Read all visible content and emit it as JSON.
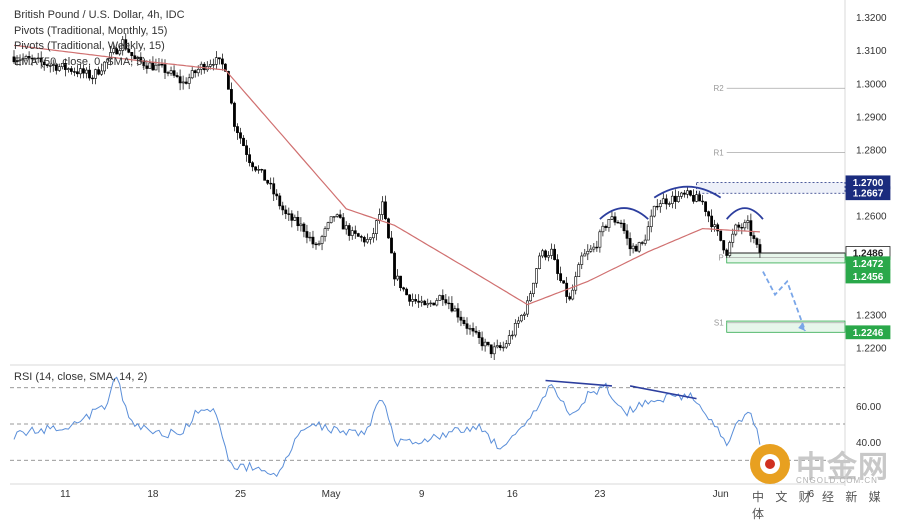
{
  "legend": {
    "symbol": "British Pound / U.S. Dollar, 4h, IDC",
    "pivots_monthly": "Pivots (Traditional, Monthly, 15)",
    "pivots_weekly": "Pivots (Traditional, Weekly, 15)",
    "ema": "EMA (50, close, 0, SMA, 5)"
  },
  "rsi_legend": "RSI (14, close, SMA, 14, 2)",
  "watermark": {
    "title": "中金网",
    "url": "CNGOLD.COM.CN",
    "subtitle": "中 文 财 经 新 媒 体"
  },
  "colors": {
    "candle": "#000000",
    "ema": "#d07070",
    "rsi": "#5b8fd9",
    "annotation": "#2c3e9e",
    "projection": "#7aa6e8",
    "label_dark": "#1b2c7e",
    "label_green": "#2aa84a",
    "label_black": "#222222"
  },
  "chart_data": {
    "type": "candlestick",
    "timeframe": "4h",
    "x_tick_labels": [
      "11",
      "18",
      "25",
      "May",
      "9",
      "16",
      "23",
      "Jun",
      "6"
    ],
    "price_axis": {
      "ylim": [
        1.215,
        1.324
      ],
      "tick_labels": [
        "1.3200",
        "1.3100",
        "1.3000",
        "1.2900",
        "1.2800",
        "1.2600",
        "1.2300",
        "1.2200"
      ]
    },
    "rsi_axis": {
      "ylim": [
        18,
        82
      ],
      "tick_labels": [
        "60.00",
        "40.00"
      ],
      "bands": [
        70,
        50,
        30
      ]
    },
    "close_anchors": [
      {
        "i": 0,
        "v": 1.308
      },
      {
        "i": 10,
        "v": 1.306
      },
      {
        "i": 20,
        "v": 1.304
      },
      {
        "i": 26,
        "v": 1.302
      },
      {
        "i": 30,
        "v": 1.306
      },
      {
        "i": 36,
        "v": 1.3125
      },
      {
        "i": 40,
        "v": 1.307
      },
      {
        "i": 50,
        "v": 1.304
      },
      {
        "i": 56,
        "v": 1.3
      },
      {
        "i": 62,
        "v": 1.305
      },
      {
        "i": 66,
        "v": 1.307
      },
      {
        "i": 70,
        "v": 1.305
      },
      {
        "i": 73,
        "v": 1.288
      },
      {
        "i": 78,
        "v": 1.277
      },
      {
        "i": 84,
        "v": 1.27
      },
      {
        "i": 90,
        "v": 1.26
      },
      {
        "i": 96,
        "v": 1.256
      },
      {
        "i": 100,
        "v": 1.25
      },
      {
        "i": 106,
        "v": 1.26
      },
      {
        "i": 112,
        "v": 1.254
      },
      {
        "i": 118,
        "v": 1.252
      },
      {
        "i": 122,
        "v": 1.263
      },
      {
        "i": 126,
        "v": 1.242
      },
      {
        "i": 130,
        "v": 1.236
      },
      {
        "i": 136,
        "v": 1.232
      },
      {
        "i": 142,
        "v": 1.236
      },
      {
        "i": 148,
        "v": 1.229
      },
      {
        "i": 152,
        "v": 1.224
      },
      {
        "i": 158,
        "v": 1.219
      },
      {
        "i": 162,
        "v": 1.22
      },
      {
        "i": 166,
        "v": 1.226
      },
      {
        "i": 170,
        "v": 1.233
      },
      {
        "i": 174,
        "v": 1.248
      },
      {
        "i": 178,
        "v": 1.249
      },
      {
        "i": 180,
        "v": 1.242
      },
      {
        "i": 184,
        "v": 1.234
      },
      {
        "i": 188,
        "v": 1.247
      },
      {
        "i": 192,
        "v": 1.25
      },
      {
        "i": 197,
        "v": 1.259
      },
      {
        "i": 201,
        "v": 1.258
      },
      {
        "i": 204,
        "v": 1.25
      },
      {
        "i": 208,
        "v": 1.251
      },
      {
        "i": 213,
        "v": 1.264
      },
      {
        "i": 218,
        "v": 1.265
      },
      {
        "i": 223,
        "v": 1.266
      },
      {
        "i": 228,
        "v": 1.264
      },
      {
        "i": 232,
        "v": 1.256
      },
      {
        "i": 236,
        "v": 1.249
      },
      {
        "i": 239,
        "v": 1.256
      },
      {
        "i": 243,
        "v": 1.257
      },
      {
        "i": 246,
        "v": 1.25
      },
      {
        "i": 247,
        "v": 1.249
      }
    ],
    "ema_anchors": [
      {
        "i": 0,
        "v": 1.3115
      },
      {
        "i": 40,
        "v": 1.307
      },
      {
        "i": 70,
        "v": 1.304
      },
      {
        "i": 90,
        "v": 1.283
      },
      {
        "i": 110,
        "v": 1.262
      },
      {
        "i": 126,
        "v": 1.257
      },
      {
        "i": 150,
        "v": 1.244
      },
      {
        "i": 170,
        "v": 1.233
      },
      {
        "i": 190,
        "v": 1.24
      },
      {
        "i": 210,
        "v": 1.249
      },
      {
        "i": 228,
        "v": 1.256
      },
      {
        "i": 247,
        "v": 1.255
      }
    ],
    "rsi_anchors": [
      {
        "i": 0,
        "v": 44
      },
      {
        "i": 10,
        "v": 47
      },
      {
        "i": 20,
        "v": 50
      },
      {
        "i": 30,
        "v": 60
      },
      {
        "i": 34,
        "v": 76
      },
      {
        "i": 38,
        "v": 52
      },
      {
        "i": 45,
        "v": 46
      },
      {
        "i": 55,
        "v": 44
      },
      {
        "i": 60,
        "v": 55
      },
      {
        "i": 66,
        "v": 58
      },
      {
        "i": 72,
        "v": 27
      },
      {
        "i": 80,
        "v": 26
      },
      {
        "i": 88,
        "v": 22
      },
      {
        "i": 94,
        "v": 44
      },
      {
        "i": 100,
        "v": 50
      },
      {
        "i": 106,
        "v": 47
      },
      {
        "i": 116,
        "v": 45
      },
      {
        "i": 122,
        "v": 65
      },
      {
        "i": 126,
        "v": 40
      },
      {
        "i": 134,
        "v": 41
      },
      {
        "i": 144,
        "v": 45
      },
      {
        "i": 150,
        "v": 47
      },
      {
        "i": 154,
        "v": 49
      },
      {
        "i": 160,
        "v": 38
      },
      {
        "i": 166,
        "v": 42
      },
      {
        "i": 172,
        "v": 55
      },
      {
        "i": 178,
        "v": 72
      },
      {
        "i": 184,
        "v": 54
      },
      {
        "i": 190,
        "v": 66
      },
      {
        "i": 196,
        "v": 70
      },
      {
        "i": 202,
        "v": 56
      },
      {
        "i": 210,
        "v": 63
      },
      {
        "i": 220,
        "v": 66
      },
      {
        "i": 226,
        "v": 64
      },
      {
        "i": 232,
        "v": 49
      },
      {
        "i": 236,
        "v": 38
      },
      {
        "i": 240,
        "v": 52
      },
      {
        "i": 244,
        "v": 55
      },
      {
        "i": 247,
        "v": 40
      }
    ],
    "pivot_lines": [
      {
        "label": "R2",
        "value": 1.2985
      },
      {
        "label": "R1",
        "value": 1.279
      },
      {
        "label": "P",
        "value": 1.2472
      },
      {
        "label": "S1",
        "value": 1.2275
      }
    ],
    "price_labels": [
      {
        "value": "1.2700",
        "price": 1.27,
        "style": "dark"
      },
      {
        "value": "1.2667",
        "price": 1.2667,
        "style": "dark"
      },
      {
        "value": "1.2486",
        "price": 1.2486,
        "style": "black"
      },
      {
        "value": "1.2472",
        "price": 1.2455,
        "style": "green"
      },
      {
        "value": "1.2456",
        "price": 1.2415,
        "style": "green"
      },
      {
        "value": "1.2246",
        "price": 1.2246,
        "style": "green"
      }
    ],
    "zones": [
      {
        "from": 1.2667,
        "to": 1.27,
        "style": "dark"
      },
      {
        "from": 1.2456,
        "to": 1.2486,
        "style": "green"
      },
      {
        "from": 1.2246,
        "to": 1.228,
        "style": "green"
      }
    ],
    "head_shoulders_arcs": [
      {
        "i_from": 194,
        "i_to": 210,
        "peak": 1.2625
      },
      {
        "i_from": 212,
        "i_to": 234,
        "peak": 1.269
      },
      {
        "i_from": 236,
        "i_to": 248,
        "peak": 1.2625
      }
    ],
    "rsi_divergence_lines": [
      {
        "i_from": 176,
        "i_to": 198,
        "v_from": 74,
        "v_to": 71
      },
      {
        "i_from": 204,
        "i_to": 226,
        "v_from": 71,
        "v_to": 64
      }
    ],
    "projection_path": [
      {
        "i": 248,
        "v": 1.243
      },
      {
        "i": 252,
        "v": 1.236
      },
      {
        "i": 256,
        "v": 1.24
      },
      {
        "i": 262,
        "v": 1.225
      }
    ]
  }
}
